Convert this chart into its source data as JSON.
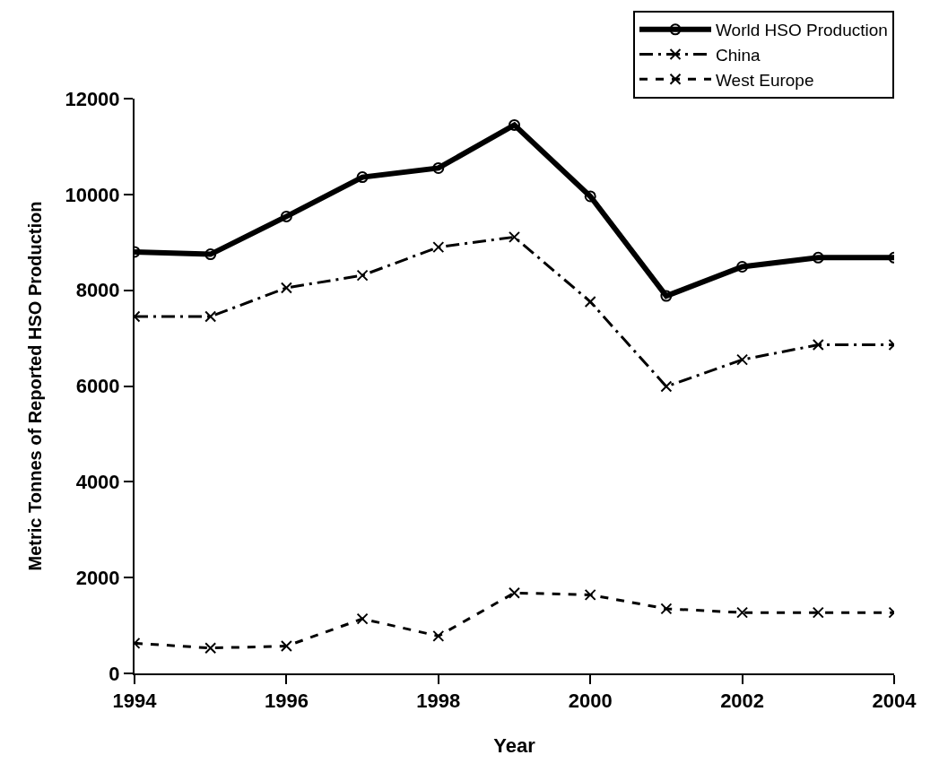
{
  "chart_data": {
    "type": "line",
    "xlabel": "Year",
    "ylabel": "Metric Tonnes of Reported HSO Production",
    "x": [
      1994,
      1995,
      1996,
      1997,
      1998,
      1999,
      2000,
      2001,
      2002,
      2003,
      2004
    ],
    "series": [
      {
        "name": "World HSO Production",
        "color": "#000000",
        "marker": "circle",
        "line_style": "solid",
        "values": [
          8800,
          8750,
          9540,
          10360,
          10550,
          11450,
          9960,
          7880,
          8490,
          8680,
          8680
        ]
      },
      {
        "name": "China",
        "color": "#000000",
        "marker": "cross",
        "line_style": "dashed",
        "values": [
          7450,
          7450,
          8050,
          8310,
          8900,
          9110,
          7760,
          5990,
          6550,
          6860,
          6860
        ]
      },
      {
        "name": "West Europe",
        "color": "#000000",
        "marker": "cross",
        "line_style": "dotted",
        "values": [
          630,
          530,
          570,
          1140,
          780,
          1680,
          1640,
          1350,
          1270,
          1270,
          1270
        ]
      }
    ],
    "xlim": [
      1994,
      2004
    ],
    "xticks": [
      1994,
      1996,
      1998,
      2000,
      2002,
      2004
    ],
    "ylim": [
      0,
      12000
    ],
    "yticks": [
      0,
      2000,
      4000,
      6000,
      8000,
      10000,
      12000
    ],
    "legend": "top right"
  }
}
